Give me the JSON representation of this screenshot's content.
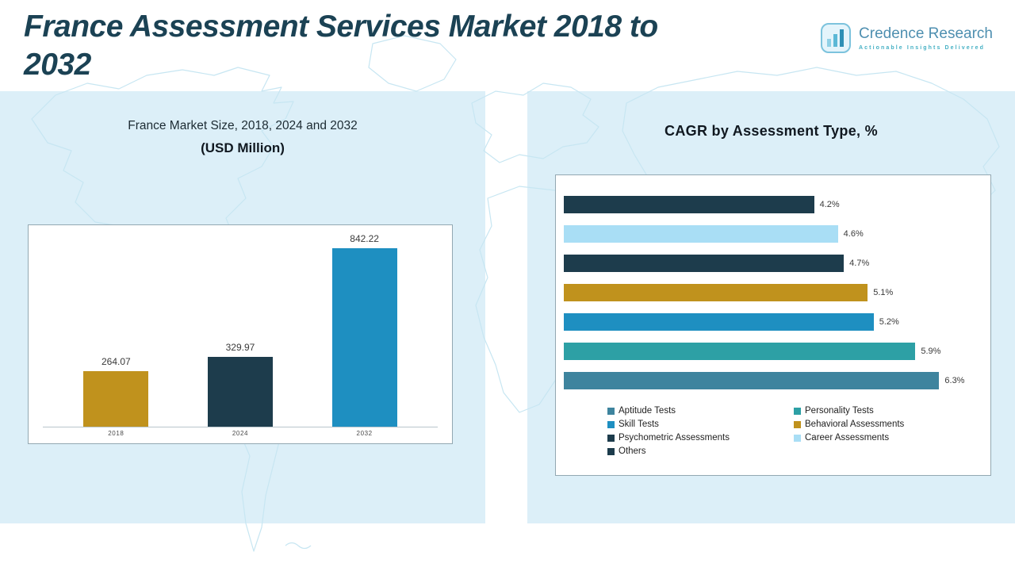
{
  "title": {
    "line1": "France Assessment Services Market 2018 to",
    "line2": "2032"
  },
  "logo": {
    "name": "Credence Research",
    "tagline": "Actionable Insights Delivered"
  },
  "panels": {
    "market_size": {
      "title_line1": "France Market Size, 2018, 2024 and 2032",
      "title_line2": "(USD Million)"
    },
    "cagr": {
      "title": "CAGR by Assessment Type, %"
    }
  },
  "chart_data": [
    {
      "type": "bar",
      "title": "France Market Size, 2018, 2024 and 2032 (USD Million)",
      "categories": [
        "2018",
        "2024",
        "2032"
      ],
      "values": [
        264.07,
        329.97,
        842.22
      ],
      "value_labels": [
        "264.07",
        "329.97",
        "842.22"
      ],
      "bar_colors": [
        "#c0921d",
        "#1d3c4c",
        "#1e8fc1"
      ],
      "xlabel": "",
      "ylabel": "",
      "ylim": [
        0,
        900
      ],
      "grid": false,
      "legend_position": "none"
    },
    {
      "type": "bar",
      "orientation": "horizontal",
      "title": "CAGR by Assessment Type, %",
      "categories": [
        "Others",
        "Career Assessments",
        "Psychometric Assessments",
        "Behavioral Assessments",
        "Skill Tests",
        "Personality Tests",
        "Aptitude Tests"
      ],
      "values": [
        4.2,
        4.6,
        4.7,
        5.1,
        5.2,
        5.9,
        6.3
      ],
      "value_labels": [
        "4.2%",
        "4.6%",
        "4.7%",
        "5.1%",
        "5.2%",
        "5.9%",
        "6.3%"
      ],
      "bar_colors": [
        "#1d3c4c",
        "#a9def5",
        "#1d3c4c",
        "#c0921d",
        "#1e8fc1",
        "#2da0a5",
        "#3e849e"
      ],
      "xlim": [
        0,
        7
      ],
      "grid": false,
      "legend_position": "bottom",
      "legend": [
        {
          "label": "Aptitude Tests",
          "color": "#3e849e"
        },
        {
          "label": "Personality Tests",
          "color": "#2da0a5"
        },
        {
          "label": "Skill Tests",
          "color": "#1e8fc1"
        },
        {
          "label": "Behavioral Assessments",
          "color": "#c0921d"
        },
        {
          "label": "Psychometric Assessments",
          "color": "#1d3c4c"
        },
        {
          "label": "Career Assessments",
          "color": "#a9def5"
        },
        {
          "label": "Others",
          "color": "#1d3c4c"
        }
      ]
    }
  ],
  "colors": {
    "accent_dark": "#1d3c4c",
    "gold": "#c0921d",
    "blue": "#1e8fc1",
    "teal": "#2da0a5",
    "light_blue": "#a9def5",
    "steel": "#3e849e",
    "panel_bg": "#dceff8",
    "title_color": "#1b4254"
  }
}
